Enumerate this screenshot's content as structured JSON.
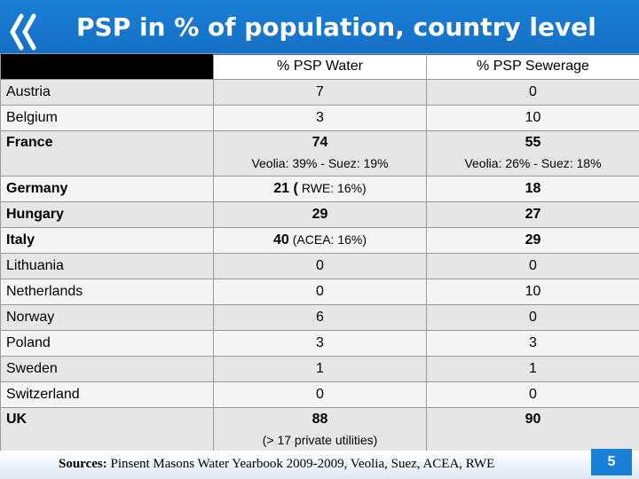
{
  "slide": {
    "title": "PSP in % of population, country level",
    "page_number": "5",
    "accent_color": "#1a7fd6",
    "logo_icon": "double-chevron-left-icon"
  },
  "table": {
    "headers": [
      "",
      "% PSP Water",
      "% PSP Sewerage"
    ],
    "rows": [
      {
        "country": "Austria",
        "water": "7",
        "water_note": "",
        "sewerage": "0",
        "sewerage_note": ""
      },
      {
        "country": "Belgium",
        "water": "3",
        "water_note": "",
        "sewerage": "10",
        "sewerage_note": ""
      },
      {
        "country": "France",
        "water": "74",
        "water_note": "Veolia: 39% - Suez: 19%",
        "sewerage": "55",
        "sewerage_note": "Veolia: 26% - Suez: 18%"
      },
      {
        "country": "Germany",
        "water": "21 (",
        "water_note": "RWE: 16%)",
        "sewerage": "18",
        "sewerage_note": ""
      },
      {
        "country": "Hungary",
        "water": "29",
        "water_note": "",
        "sewerage": "27",
        "sewerage_note": ""
      },
      {
        "country": "Italy",
        "water": "40",
        "water_note": "(ACEA: 16%)",
        "sewerage": "29",
        "sewerage_note": ""
      },
      {
        "country": "Lithuania",
        "water": "0",
        "water_note": "",
        "sewerage": "0",
        "sewerage_note": ""
      },
      {
        "country": "Netherlands",
        "water": "0",
        "water_note": "",
        "sewerage": "10",
        "sewerage_note": ""
      },
      {
        "country": "Norway",
        "water": "6",
        "water_note": "",
        "sewerage": "0",
        "sewerage_note": ""
      },
      {
        "country": "Poland",
        "water": "3",
        "water_note": "",
        "sewerage": "3",
        "sewerage_note": ""
      },
      {
        "country": "Sweden",
        "water": "1",
        "water_note": "",
        "sewerage": "1",
        "sewerage_note": ""
      },
      {
        "country": "Switzerland",
        "water": "0",
        "water_note": "",
        "sewerage": "0",
        "sewerage_note": ""
      },
      {
        "country": "UK",
        "water": "88",
        "water_note": "(> 17 private utilities)",
        "sewerage": "90",
        "sewerage_note": ""
      }
    ]
  },
  "footer": {
    "sources_label": "Sources:",
    "sources_text": "Pinsent Masons Water Yearbook 2009-2009, Veolia, Suez, ACEA, RWE"
  }
}
